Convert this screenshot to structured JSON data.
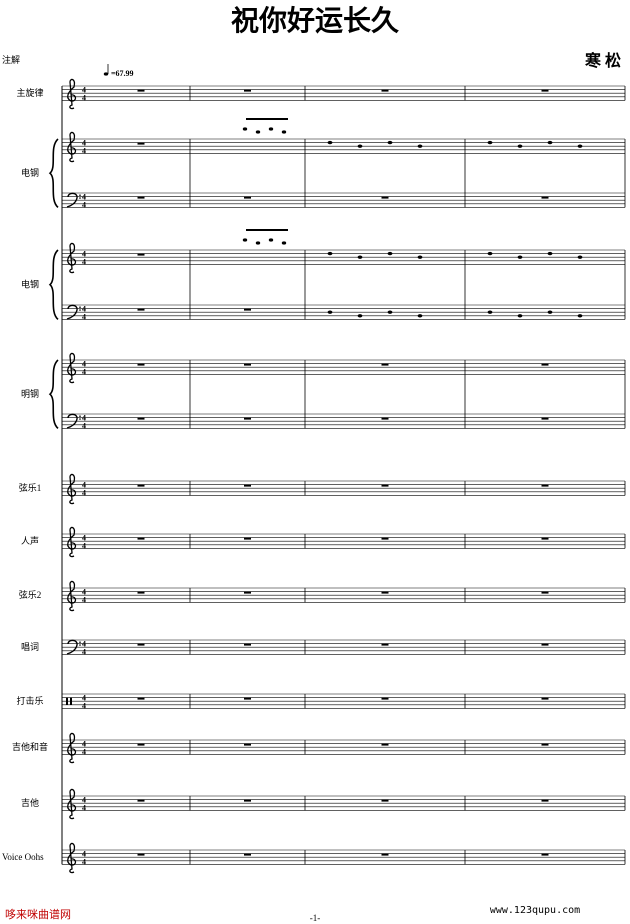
{
  "header": {
    "title": "祝你好运长久",
    "composer": "寒 松",
    "annotation_label": "注解",
    "tempo": "=67.99"
  },
  "time_signature": [
    "4",
    "4"
  ],
  "staves": [
    "主旋律",
    "电钢",
    "电钢",
    "明钢",
    "弦乐1",
    "人声",
    "弦乐2",
    "唱词",
    "打击乐",
    "吉他和音",
    "吉他",
    "Voice Oohs"
  ],
  "footer": {
    "site_name": "哆来咪曲谱网",
    "page_number": "-1-",
    "url": "www.123qupu.com"
  }
}
